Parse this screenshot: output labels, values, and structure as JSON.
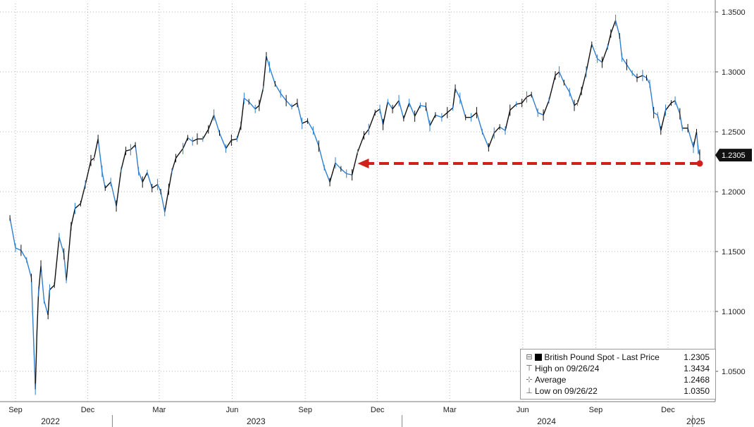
{
  "chart_data": {
    "type": "line",
    "title": "",
    "xlabel": "",
    "ylabel": "",
    "x_range": [
      "2022-09-01",
      "2025-01-10"
    ],
    "ylim": [
      1.025,
      1.36
    ],
    "y_ticks": [
      "1.3500",
      "1.3000",
      "1.2500",
      "1.2000",
      "1.1500",
      "1.1000",
      "1.0500"
    ],
    "month_ticks": [
      {
        "date": "2022-09-01",
        "label": "Sep"
      },
      {
        "date": "2022-12-01",
        "label": "Dec"
      },
      {
        "date": "2023-03-01",
        "label": "Mar"
      },
      {
        "date": "2023-06-01",
        "label": "Jun"
      },
      {
        "date": "2023-09-01",
        "label": "Sep"
      },
      {
        "date": "2023-12-01",
        "label": "Dec"
      },
      {
        "date": "2024-03-01",
        "label": "Mar"
      },
      {
        "date": "2024-06-01",
        "label": "Jun"
      },
      {
        "date": "2024-09-01",
        "label": "Sep"
      },
      {
        "date": "2024-12-01",
        "label": "Dec"
      }
    ],
    "year_labels": [
      {
        "date": "2022-10-15",
        "label": "2022"
      },
      {
        "date": "2023-07-01",
        "label": "2023"
      },
      {
        "date": "2024-07-01",
        "label": "2024"
      },
      {
        "date": "2025-01-05",
        "label": "2025"
      }
    ],
    "grid": true,
    "legend_position": "bottom-right",
    "series": [
      {
        "name": "British Pound Spot - Last Price",
        "points": [
          [
            "2022-08-25",
            1.178
          ],
          [
            "2022-09-01",
            1.153
          ],
          [
            "2022-09-08",
            1.151
          ],
          [
            "2022-09-15",
            1.143
          ],
          [
            "2022-09-21",
            1.128
          ],
          [
            "2022-09-26",
            1.035
          ],
          [
            "2022-09-28",
            1.082
          ],
          [
            "2022-09-30",
            1.116
          ],
          [
            "2022-10-03",
            1.138
          ],
          [
            "2022-10-07",
            1.109
          ],
          [
            "2022-10-12",
            1.097
          ],
          [
            "2022-10-14",
            1.118
          ],
          [
            "2022-10-20",
            1.122
          ],
          [
            "2022-10-26",
            1.162
          ],
          [
            "2022-11-01",
            1.148
          ],
          [
            "2022-11-04",
            1.126
          ],
          [
            "2022-11-10",
            1.171
          ],
          [
            "2022-11-15",
            1.186
          ],
          [
            "2022-11-22",
            1.19
          ],
          [
            "2022-11-28",
            1.206
          ],
          [
            "2022-12-05",
            1.226
          ],
          [
            "2022-12-09",
            1.228
          ],
          [
            "2022-12-14",
            1.244
          ],
          [
            "2022-12-19",
            1.217
          ],
          [
            "2022-12-23",
            1.203
          ],
          [
            "2022-12-30",
            1.208
          ],
          [
            "2023-01-06",
            1.188
          ],
          [
            "2023-01-12",
            1.218
          ],
          [
            "2023-01-18",
            1.234
          ],
          [
            "2023-01-24",
            1.235
          ],
          [
            "2023-01-30",
            1.239
          ],
          [
            "2023-02-03",
            1.217
          ],
          [
            "2023-02-08",
            1.208
          ],
          [
            "2023-02-14",
            1.216
          ],
          [
            "2023-02-20",
            1.203
          ],
          [
            "2023-02-27",
            1.206
          ],
          [
            "2023-03-03",
            1.2
          ],
          [
            "2023-03-08",
            1.183
          ],
          [
            "2023-03-13",
            1.202
          ],
          [
            "2023-03-17",
            1.217
          ],
          [
            "2023-03-22",
            1.228
          ],
          [
            "2023-03-31",
            1.236
          ],
          [
            "2023-04-06",
            1.245
          ],
          [
            "2023-04-12",
            1.242
          ],
          [
            "2023-04-18",
            1.244
          ],
          [
            "2023-04-25",
            1.244
          ],
          [
            "2023-05-02",
            1.252
          ],
          [
            "2023-05-09",
            1.264
          ],
          [
            "2023-05-16",
            1.249
          ],
          [
            "2023-05-24",
            1.236
          ],
          [
            "2023-05-31",
            1.243
          ],
          [
            "2023-06-07",
            1.244
          ],
          [
            "2023-06-12",
            1.255
          ],
          [
            "2023-06-16",
            1.278
          ],
          [
            "2023-06-22",
            1.275
          ],
          [
            "2023-06-30",
            1.269
          ],
          [
            "2023-07-05",
            1.272
          ],
          [
            "2023-07-10",
            1.286
          ],
          [
            "2023-07-14",
            1.313
          ],
          [
            "2023-07-18",
            1.304
          ],
          [
            "2023-07-25",
            1.29
          ],
          [
            "2023-08-01",
            1.282
          ],
          [
            "2023-08-08",
            1.276
          ],
          [
            "2023-08-15",
            1.271
          ],
          [
            "2023-08-22",
            1.274
          ],
          [
            "2023-08-28",
            1.257
          ],
          [
            "2023-09-04",
            1.259
          ],
          [
            "2023-09-11",
            1.251
          ],
          [
            "2023-09-18",
            1.238
          ],
          [
            "2023-09-25",
            1.22
          ],
          [
            "2023-10-02",
            1.208
          ],
          [
            "2023-10-09",
            1.224
          ],
          [
            "2023-10-16",
            1.219
          ],
          [
            "2023-10-23",
            1.215
          ],
          [
            "2023-10-30",
            1.214
          ],
          [
            "2023-11-06",
            1.233
          ],
          [
            "2023-11-14",
            1.247
          ],
          [
            "2023-11-20",
            1.252
          ],
          [
            "2023-11-28",
            1.266
          ],
          [
            "2023-12-04",
            1.269
          ],
          [
            "2023-12-08",
            1.256
          ],
          [
            "2023-12-14",
            1.275
          ],
          [
            "2023-12-20",
            1.269
          ],
          [
            "2023-12-28",
            1.276
          ],
          [
            "2024-01-03",
            1.261
          ],
          [
            "2024-01-10",
            1.274
          ],
          [
            "2024-01-17",
            1.263
          ],
          [
            "2024-01-24",
            1.272
          ],
          [
            "2024-01-31",
            1.271
          ],
          [
            "2024-02-05",
            1.255
          ],
          [
            "2024-02-12",
            1.264
          ],
          [
            "2024-02-20",
            1.262
          ],
          [
            "2024-02-27",
            1.266
          ],
          [
            "2024-03-05",
            1.27
          ],
          [
            "2024-03-08",
            1.286
          ],
          [
            "2024-03-14",
            1.278
          ],
          [
            "2024-03-21",
            1.262
          ],
          [
            "2024-03-28",
            1.262
          ],
          [
            "2024-04-04",
            1.266
          ],
          [
            "2024-04-11",
            1.25
          ],
          [
            "2024-04-19",
            1.237
          ],
          [
            "2024-04-26",
            1.249
          ],
          [
            "2024-05-03",
            1.254
          ],
          [
            "2024-05-10",
            1.251
          ],
          [
            "2024-05-16",
            1.268
          ],
          [
            "2024-05-24",
            1.273
          ],
          [
            "2024-05-31",
            1.274
          ],
          [
            "2024-06-06",
            1.279
          ],
          [
            "2024-06-12",
            1.281
          ],
          [
            "2024-06-20",
            1.266
          ],
          [
            "2024-06-27",
            1.264
          ],
          [
            "2024-07-04",
            1.276
          ],
          [
            "2024-07-12",
            1.297
          ],
          [
            "2024-07-17",
            1.3
          ],
          [
            "2024-07-23",
            1.291
          ],
          [
            "2024-07-30",
            1.283
          ],
          [
            "2024-08-05",
            1.272
          ],
          [
            "2024-08-09",
            1.274
          ],
          [
            "2024-08-14",
            1.284
          ],
          [
            "2024-08-20",
            1.3
          ],
          [
            "2024-08-27",
            1.323
          ],
          [
            "2024-09-03",
            1.311
          ],
          [
            "2024-09-09",
            1.308
          ],
          [
            "2024-09-16",
            1.321
          ],
          [
            "2024-09-20",
            1.332
          ],
          [
            "2024-09-26",
            1.343
          ],
          [
            "2024-10-01",
            1.33
          ],
          [
            "2024-10-04",
            1.312
          ],
          [
            "2024-10-10",
            1.306
          ],
          [
            "2024-10-17",
            1.299
          ],
          [
            "2024-10-23",
            1.295
          ],
          [
            "2024-10-30",
            1.297
          ],
          [
            "2024-11-04",
            1.295
          ],
          [
            "2024-11-08",
            1.29
          ],
          [
            "2024-11-13",
            1.266
          ],
          [
            "2024-11-18",
            1.264
          ],
          [
            "2024-11-22",
            1.251
          ],
          [
            "2024-11-28",
            1.268
          ],
          [
            "2024-12-05",
            1.274
          ],
          [
            "2024-12-10",
            1.276
          ],
          [
            "2024-12-16",
            1.265
          ],
          [
            "2024-12-19",
            1.253
          ],
          [
            "2024-12-26",
            1.253
          ],
          [
            "2025-01-02",
            1.237
          ],
          [
            "2025-01-06",
            1.25
          ],
          [
            "2025-01-08",
            1.235
          ],
          [
            "2025-01-10",
            1.2305
          ]
        ]
      }
    ],
    "last_value_tag": "1.2305",
    "annotation": {
      "type": "dashed-arrow",
      "color": "#d0201a",
      "from": [
        "2025-01-10",
        1.2235
      ],
      "to": [
        "2023-11-06",
        1.2235
      ]
    },
    "legend": {
      "series_name": "British Pound Spot - Last Price",
      "series_value": "1.2305",
      "rows": [
        {
          "label": "High on 09/26/24",
          "value": "1.3434"
        },
        {
          "label": "Average",
          "value": "1.2468"
        },
        {
          "label": "Low on 09/26/22",
          "value": "1.0350"
        }
      ]
    }
  },
  "colors": {
    "line_black": "#111111",
    "line_blue": "#2f7fd1",
    "grid": "#b5b5b5",
    "arrow": "#d0201a",
    "tag_bg": "#111111"
  }
}
